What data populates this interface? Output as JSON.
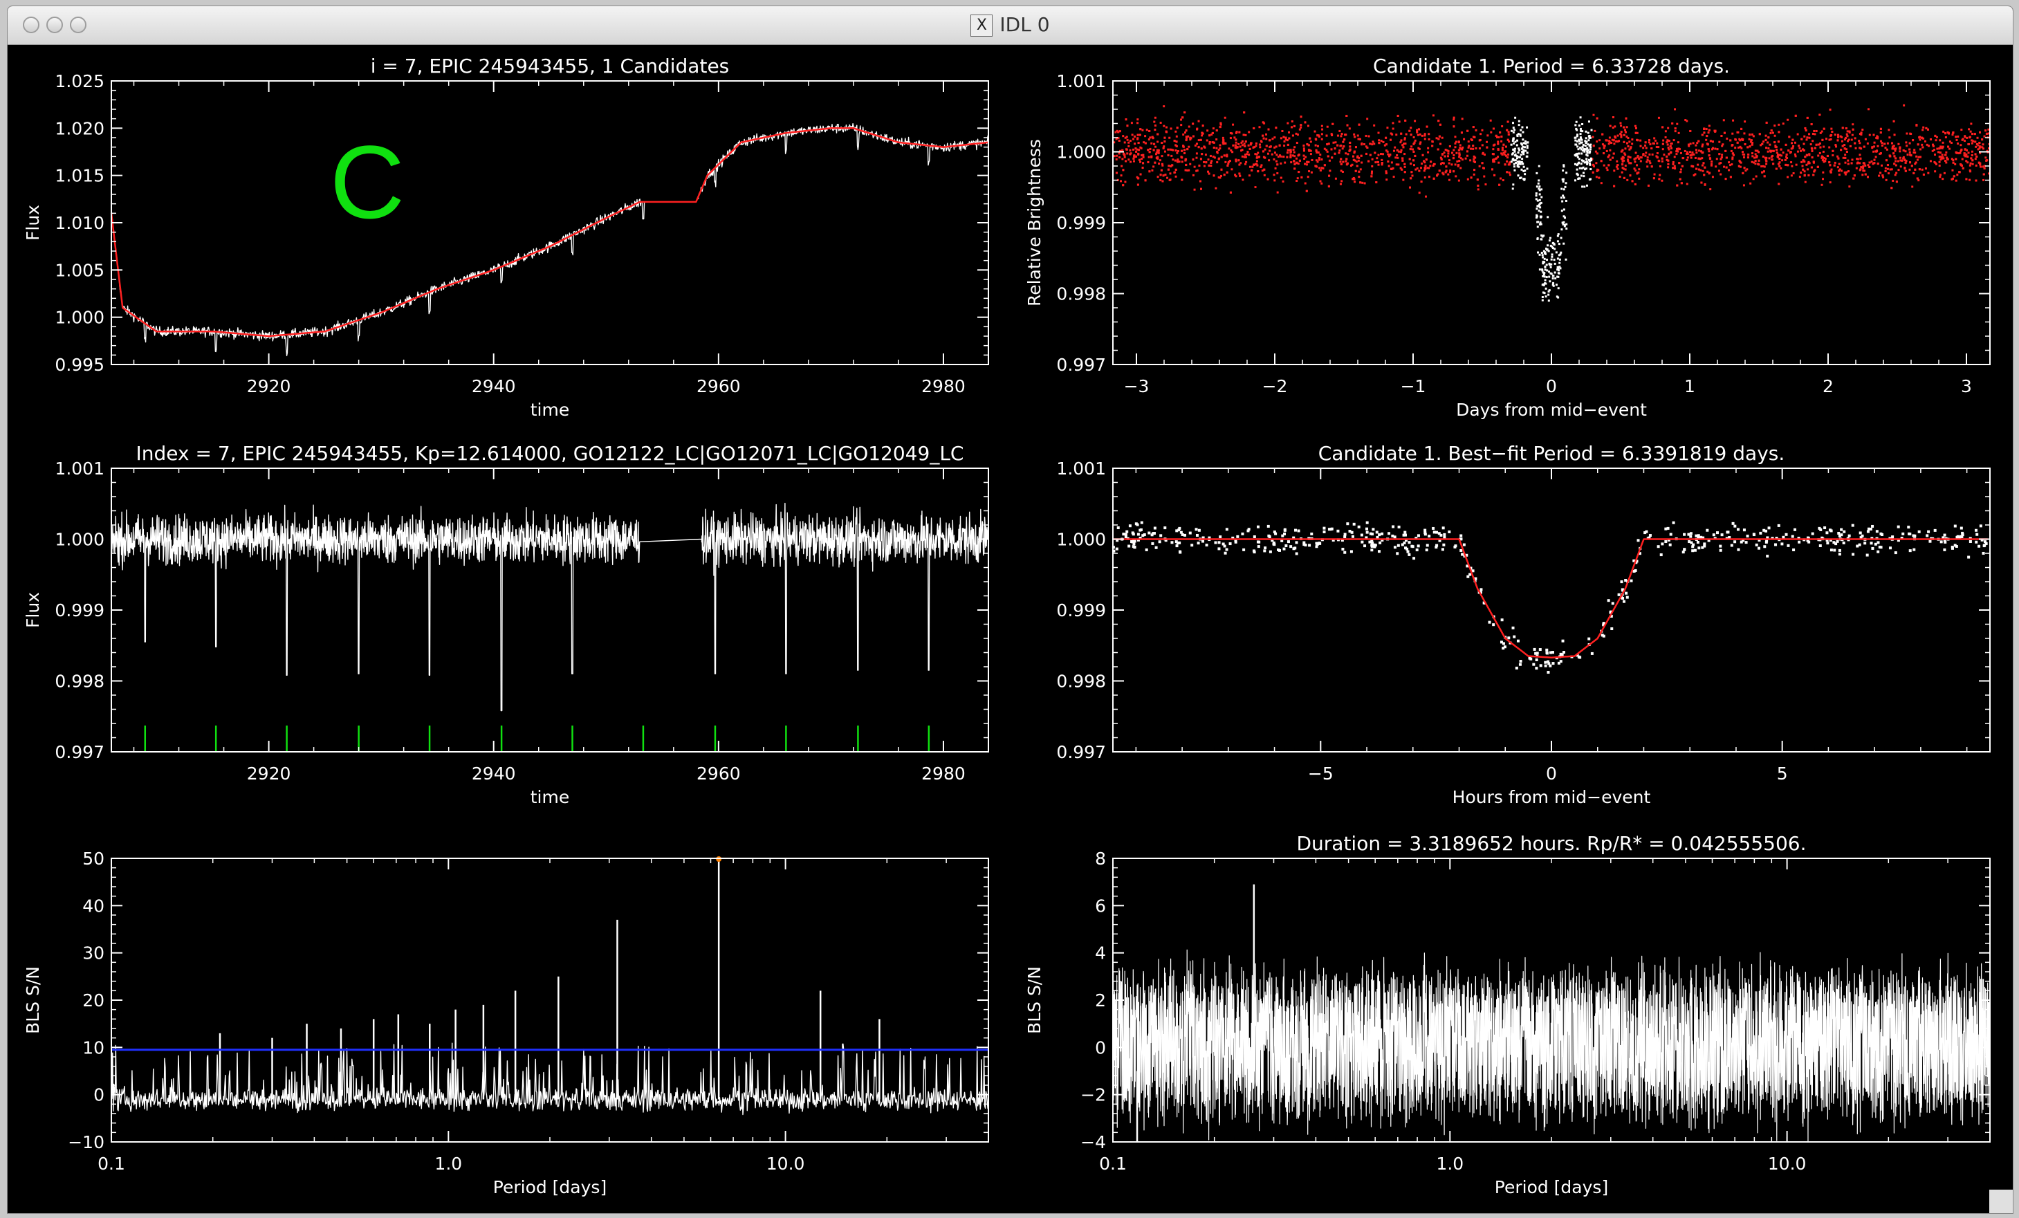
{
  "window": {
    "title": "IDL 0",
    "x_icon": "X"
  },
  "marker_letter": "C",
  "colors": {
    "data": "#ffffff",
    "fit": "#ff2020",
    "marker": "#10e010",
    "threshold": "#2030ff",
    "peak": "#ff8000"
  },
  "chart_data": [
    {
      "id": "p1",
      "type": "line",
      "title": "i = 7, EPIC 245943455, 1 Candidates",
      "xlabel": "time",
      "ylabel": "Flux",
      "xlim": [
        2906,
        2984
      ],
      "ylim": [
        0.995,
        1.025
      ],
      "xticks": [
        2920,
        2940,
        2960,
        2980
      ],
      "xticklabels": [
        "2920",
        "2940",
        "2960",
        "2980"
      ],
      "yticks": [
        0.995,
        1.0,
        1.005,
        1.01,
        1.015,
        1.02,
        1.025
      ],
      "yticklabels": [
        "0.995",
        "1.000",
        "1.005",
        "1.010",
        "1.015",
        "1.020",
        "1.025"
      ],
      "series": [
        {
          "x": [
            2906,
            2907,
            2910,
            2915,
            2920,
            2925,
            2930,
            2935,
            2940,
            2945,
            2950,
            2953,
            2958,
            2959,
            2962,
            2966,
            2970,
            2972,
            2976,
            2980,
            2984
          ],
          "y": [
            1.011,
            1.001,
            0.9985,
            0.9985,
            0.998,
            0.9985,
            1.0005,
            1.003,
            1.005,
            1.0075,
            1.0105,
            1.0122,
            1.0122,
            1.015,
            1.0185,
            1.0195,
            1.02,
            1.02,
            1.0185,
            1.018,
            1.0185
          ]
        }
      ]
    },
    {
      "id": "p2",
      "type": "line",
      "title": "Index = 7, EPIC 245943455, Kp=12.614000, GO12122_LC|GO12071_LC|GO12049_LC",
      "xlabel": "time",
      "ylabel": "Flux",
      "xlim": [
        2906,
        2984
      ],
      "ylim": [
        0.997,
        1.001
      ],
      "xticks": [
        2920,
        2940,
        2960,
        2980
      ],
      "xticklabels": [
        "2920",
        "2940",
        "2960",
        "2980"
      ],
      "yticks": [
        0.997,
        0.998,
        0.999,
        1.0,
        1.001
      ],
      "yticklabels": [
        "0.997",
        "0.998",
        "0.999",
        "1.000",
        "1.001"
      ],
      "gap": [
        2953,
        2958.5
      ],
      "transit_times": [
        2909.0,
        2915.3,
        2921.6,
        2928.0,
        2934.3,
        2940.7,
        2947.0,
        2953.3,
        2959.7,
        2966.0,
        2972.4,
        2978.7
      ],
      "transit_depths": [
        0.99855,
        0.99848,
        0.99808,
        0.9981,
        0.99808,
        0.99758,
        0.9981,
        1.0,
        0.9981,
        0.9981,
        0.99815,
        0.99815
      ]
    },
    {
      "id": "p3",
      "type": "line",
      "title": "",
      "xlabel": "Period [days]",
      "ylabel": "BLS S/N",
      "xscale": "log",
      "xlim": [
        0.1,
        40
      ],
      "ylim": [
        -10,
        50
      ],
      "xticks": [
        0.1,
        1.0,
        10.0
      ],
      "xticklabels": [
        "0.1",
        "1.0",
        "10.0"
      ],
      "yticks": [
        -10,
        0,
        10,
        20,
        30,
        40,
        50
      ],
      "yticklabels": [
        "−10",
        "0",
        "10",
        "20",
        "30",
        "40",
        "50"
      ],
      "threshold": 9.5,
      "peaks": [
        {
          "x": 0.21,
          "y": 13
        },
        {
          "x": 0.3,
          "y": 12
        },
        {
          "x": 0.38,
          "y": 15
        },
        {
          "x": 0.48,
          "y": 14
        },
        {
          "x": 0.6,
          "y": 16
        },
        {
          "x": 0.71,
          "y": 17
        },
        {
          "x": 0.88,
          "y": 15
        },
        {
          "x": 1.05,
          "y": 18
        },
        {
          "x": 1.27,
          "y": 19
        },
        {
          "x": 1.58,
          "y": 22
        },
        {
          "x": 2.12,
          "y": 25
        },
        {
          "x": 3.17,
          "y": 37
        },
        {
          "x": 6.34,
          "y": 50
        },
        {
          "x": 12.7,
          "y": 22
        },
        {
          "x": 19.0,
          "y": 16
        }
      ]
    },
    {
      "id": "p4",
      "type": "scatter",
      "title": "Candidate 1. Period = 6.33728 days.",
      "xlabel": "Days from mid−event",
      "ylabel": "Relative Brightness",
      "xlim": [
        -3.17,
        3.17
      ],
      "ylim": [
        0.997,
        1.001
      ],
      "xticks": [
        -3,
        -2,
        -1,
        0,
        1,
        2,
        3
      ],
      "xticklabels": [
        "−3",
        "−2",
        "−1",
        "0",
        "1",
        "2",
        "3"
      ],
      "yticks": [
        0.997,
        0.998,
        0.999,
        1.0,
        1.001
      ],
      "yticklabels": [
        "0.997",
        "0.998",
        "0.999",
        "1.000",
        "1.001"
      ],
      "transit_half_width_days": 0.07,
      "depth": 0.9984
    },
    {
      "id": "p5",
      "type": "scatter",
      "title": "Candidate 1. Best−fit Period = 6.3391819 days.",
      "xlabel": "Hours from mid−event",
      "ylabel": "",
      "xlim": [
        -9.5,
        9.5
      ],
      "ylim": [
        0.997,
        1.001
      ],
      "xticks": [
        -5,
        0,
        5
      ],
      "xticklabels": [
        "−5",
        "0",
        "5"
      ],
      "yticks": [
        0.997,
        0.998,
        0.999,
        1.0,
        1.001
      ],
      "yticklabels": [
        "0.997",
        "0.998",
        "0.999",
        "1.000",
        "1.001"
      ],
      "model": {
        "x": [
          -9.5,
          -2.0,
          -1.6,
          -1.0,
          -0.5,
          0,
          0.5,
          1.0,
          1.6,
          2.0,
          9.5
        ],
        "y": [
          1.0,
          1.0,
          0.9993,
          0.9986,
          0.99835,
          0.99833,
          0.99835,
          0.9986,
          0.9993,
          1.0,
          1.0
        ]
      }
    },
    {
      "id": "p6",
      "type": "line",
      "title": "Duration = 3.3189652 hours. Rp/R* = 0.042555506.",
      "xlabel": "Period [days]",
      "ylabel": "BLS S/N",
      "xscale": "log",
      "xlim": [
        0.1,
        40
      ],
      "ylim": [
        -4,
        8
      ],
      "xticks": [
        0.1,
        1.0,
        10.0
      ],
      "xticklabels": [
        "0.1",
        "1.0",
        "10.0"
      ],
      "yticks": [
        -4,
        -2,
        0,
        2,
        4,
        6,
        8
      ],
      "yticklabels": [
        "−4",
        "−2",
        "0",
        "2",
        "4",
        "6",
        "8"
      ]
    }
  ]
}
